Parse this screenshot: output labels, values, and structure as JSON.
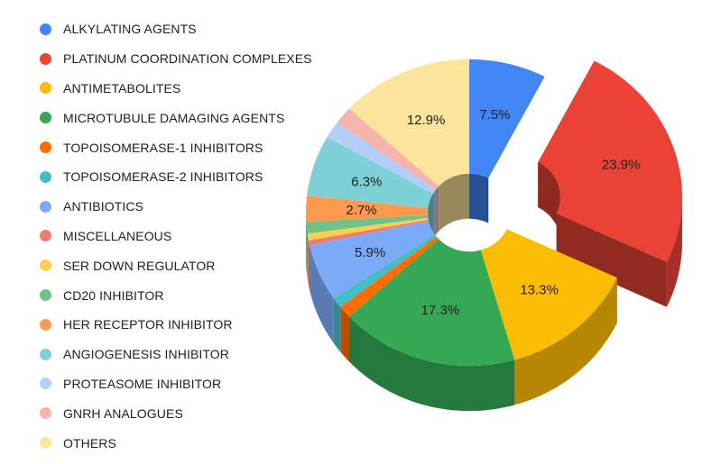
{
  "chart_data": {
    "type": "pie",
    "title": "",
    "variant": "3d-donut",
    "legend_position": "left",
    "slices": [
      {
        "label": "ALKYLATING AGENTS",
        "value": 7.5,
        "value_label": "7.5%",
        "color": "#4285f4",
        "exploded": false
      },
      {
        "label": "PLATINUM COORDINATION COMPLEXES",
        "value": 23.9,
        "value_label": "23.9%",
        "color": "#ea4335",
        "exploded": true
      },
      {
        "label": "ANTIMETABOLITES",
        "value": 13.3,
        "value_label": "13.3%",
        "color": "#fbbc04",
        "exploded": false
      },
      {
        "label": "MICROTUBULE DAMAGING  AGENTS",
        "value": 17.3,
        "value_label": "17.3%",
        "color": "#34a853",
        "exploded": false
      },
      {
        "label": "TOPOISOMERASE-1 INHIBITORS",
        "value": 1.3,
        "value_label": "",
        "color": "#ff6d01",
        "exploded": false
      },
      {
        "label": "TOPOISOMERASE-2 INHIBITORS",
        "value": 1.1,
        "value_label": "",
        "color": "#46bdc6",
        "exploded": false
      },
      {
        "label": "ANTIBIOTICS",
        "value": 5.9,
        "value_label": "5.9%",
        "color": "#7baaf7",
        "exploded": false
      },
      {
        "label": "MISCELLANEOUS",
        "value": 0.5,
        "value_label": "",
        "color": "#f07b72",
        "exploded": false
      },
      {
        "label": "SER DOWN REGULATOR",
        "value": 0.7,
        "value_label": "",
        "color": "#fcd04f",
        "exploded": false
      },
      {
        "label": "CD20 INHIBITOR",
        "value": 1.2,
        "value_label": "",
        "color": "#71c287",
        "exploded": false
      },
      {
        "label": "HER RECEPTOR INHIBITOR",
        "value": 2.7,
        "value_label": "2.7%",
        "color": "#ff994d",
        "exploded": false
      },
      {
        "label": "ANGIOGENESIS INHIBITOR",
        "value": 6.3,
        "value_label": "6.3%",
        "color": "#7ed1d7",
        "exploded": false
      },
      {
        "label": "PROTEASOME INHIBITOR",
        "value": 1.8,
        "value_label": "",
        "color": "#b3cefb",
        "exploded": false
      },
      {
        "label": "GNRH ANALOGUES",
        "value": 1.8,
        "value_label": "",
        "color": "#f7b4ae",
        "exploded": false
      },
      {
        "label": "OTHERS",
        "value": 12.9,
        "value_label": "12.9%",
        "color": "#fde49b",
        "exploded": false
      }
    ]
  }
}
